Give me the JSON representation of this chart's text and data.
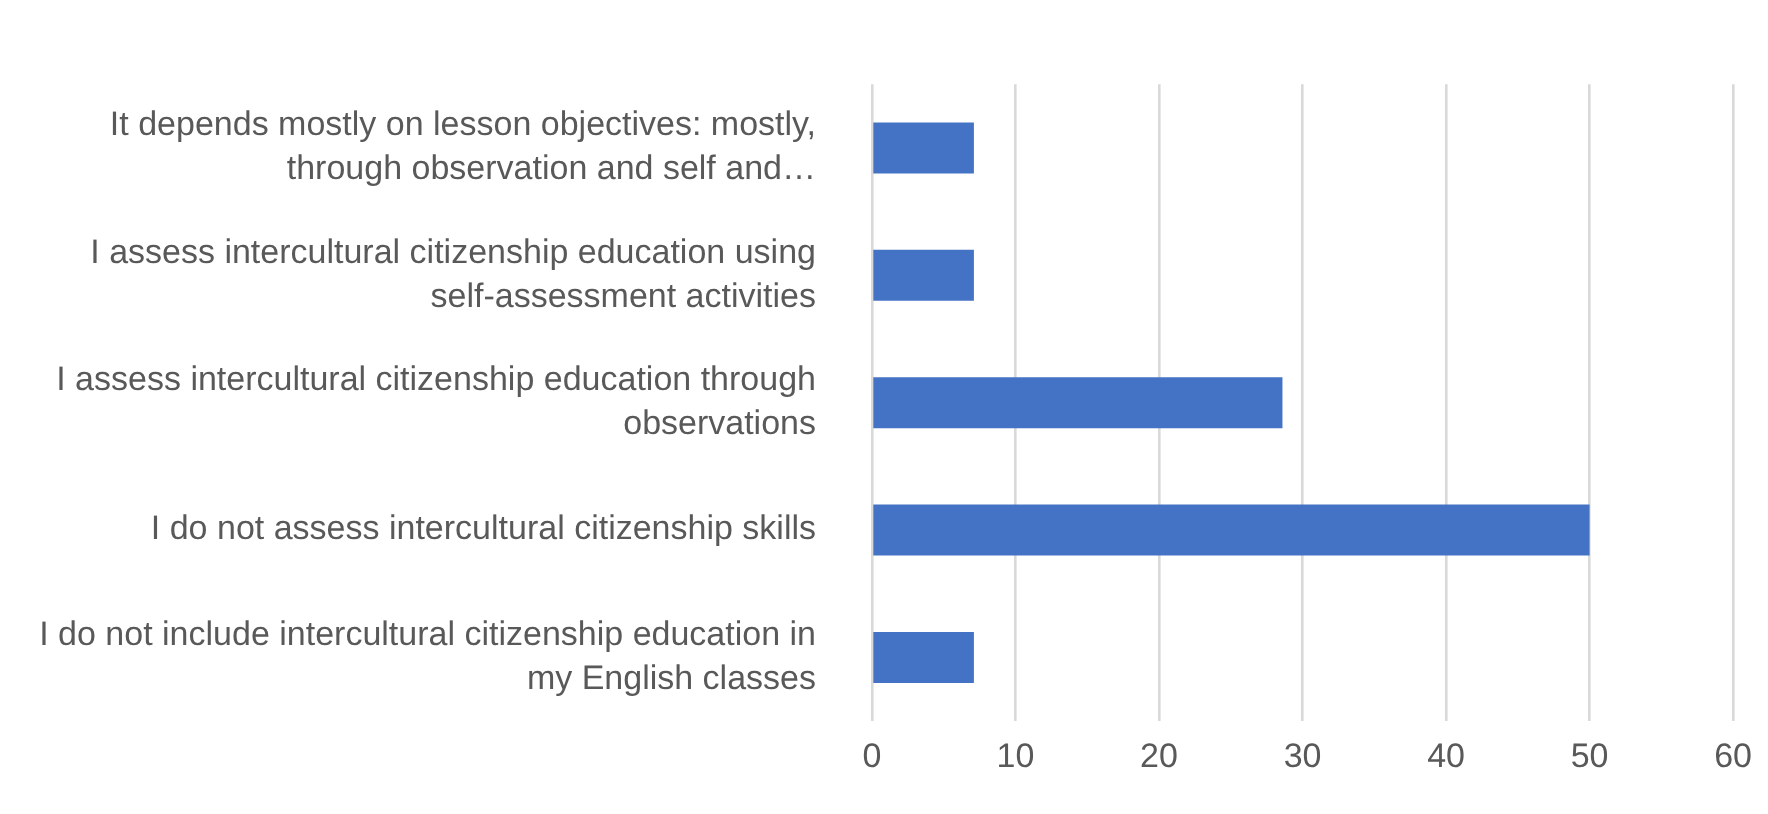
{
  "chart_data": {
    "type": "bar",
    "orientation": "horizontal",
    "categories": [
      "It depends mostly on lesson objectives: mostly, through observation and self and…",
      "I assess intercultural citizenship education using self-assessment activities",
      "I assess intercultural citizenship education through observations",
      "I do not assess intercultural citizenship skills",
      "I do not include intercultural citizenship education in my English classes"
    ],
    "values": [
      7.1,
      7.1,
      28.6,
      50,
      7.1
    ],
    "color": "#4472c4",
    "xlim": [
      0,
      60
    ],
    "xticks": [
      0,
      10,
      20,
      30,
      40,
      50,
      60
    ],
    "grid": "x",
    "legend": false
  }
}
